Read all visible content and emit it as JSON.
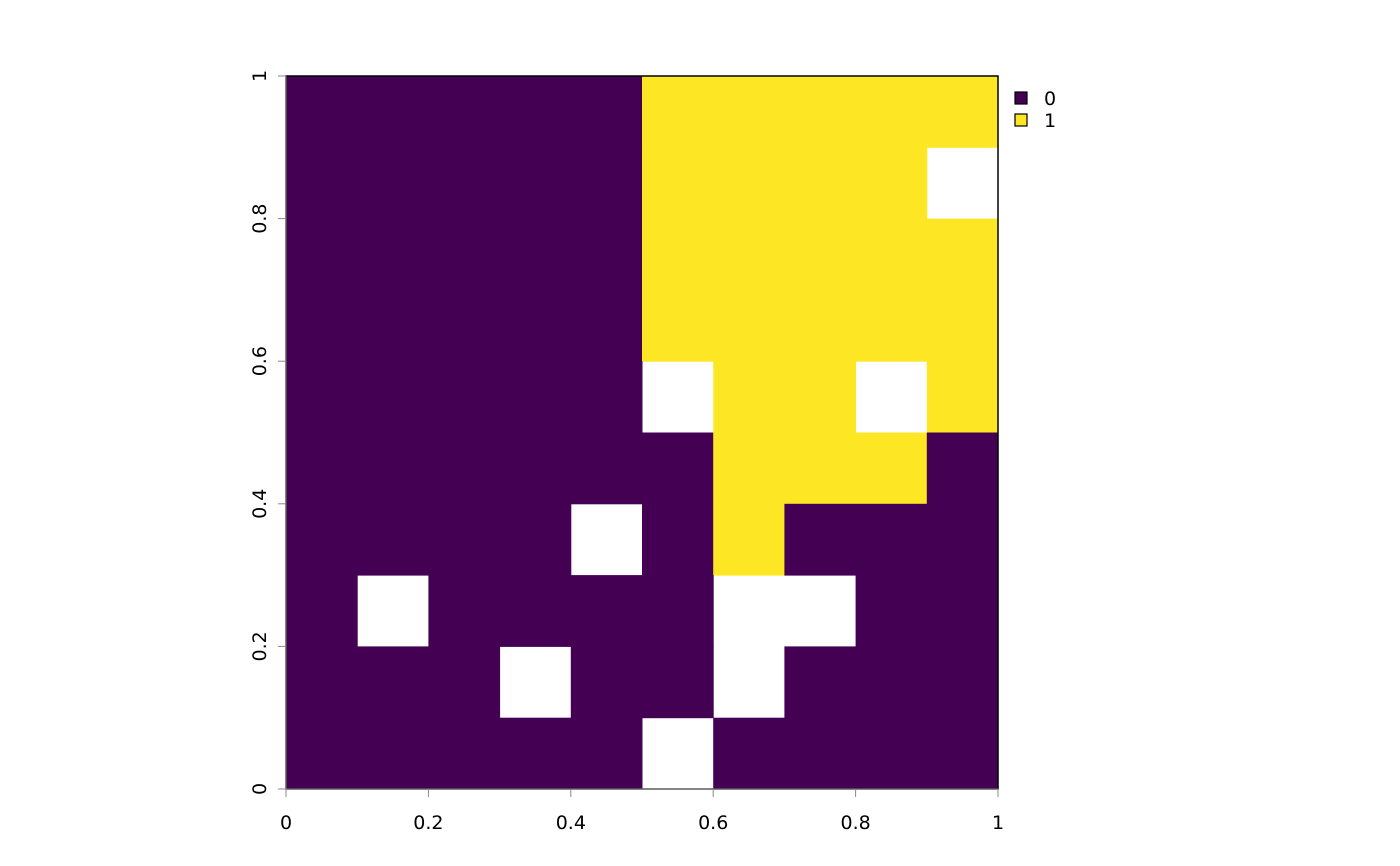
{
  "chart_data": {
    "type": "raster",
    "levels": [
      0,
      1
    ],
    "colors": [
      "#440154",
      "#FDE725"
    ],
    "xlim": [
      0,
      1
    ],
    "ylim": [
      0,
      1
    ],
    "xticks": [
      0,
      0.2,
      0.4,
      0.6,
      0.8,
      1
    ],
    "yticks": [
      0,
      0.2,
      0.4,
      0.6,
      0.8,
      1
    ],
    "z": [
      [
        0,
        0,
        0,
        0,
        0,
        1,
        1,
        1,
        1,
        1
      ],
      [
        0,
        0,
        0,
        0,
        0,
        1,
        1,
        1,
        1,
        null
      ],
      [
        0,
        0,
        0,
        0,
        0,
        1,
        1,
        1,
        1,
        1
      ],
      [
        0,
        0,
        0,
        0,
        0,
        1,
        1,
        1,
        1,
        1
      ],
      [
        0,
        0,
        0,
        0,
        0,
        null,
        1,
        1,
        null,
        1
      ],
      [
        0,
        0,
        0,
        0,
        0,
        0,
        1,
        1,
        1,
        0
      ],
      [
        0,
        0,
        0,
        0,
        null,
        0,
        1,
        0,
        0,
        0
      ],
      [
        0,
        null,
        0,
        0,
        0,
        0,
        null,
        null,
        0,
        0
      ],
      [
        0,
        0,
        0,
        null,
        0,
        0,
        null,
        0,
        0,
        0
      ],
      [
        0,
        0,
        0,
        0,
        0,
        null,
        0,
        0,
        0,
        0
      ]
    ]
  }
}
